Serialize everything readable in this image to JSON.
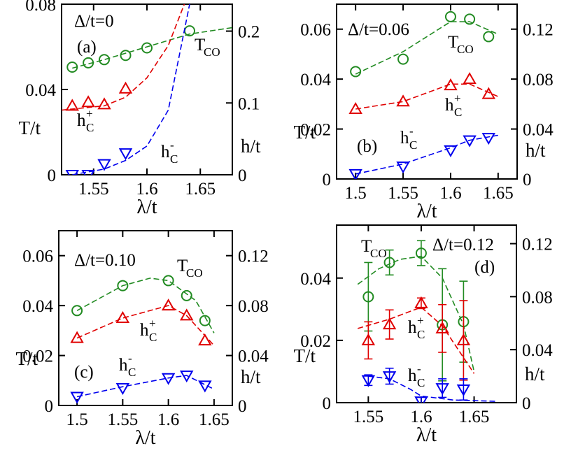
{
  "colors": {
    "t_co": "#228B22",
    "h_plus": "#E00000",
    "h_minus": "#0000EE",
    "axis": "#000000"
  },
  "chart_data": [
    {
      "type": "scatter",
      "panel_label": "(a)",
      "annotation": "Δ/t=0",
      "xlabel": "λ/t",
      "ylabel_left": "T/t",
      "ylabel_right": "h/t",
      "xlim": [
        1.52,
        1.68
      ],
      "ylim_left": [
        0,
        0.08
      ],
      "ylim_right": [
        0,
        0.2375
      ],
      "xticks": [
        1.55,
        1.6,
        1.65
      ],
      "xtick_labels": [
        "1.55",
        "1.6",
        "1.65"
      ],
      "yticks_left": [
        0,
        0.04,
        0.08
      ],
      "ytick_labels_left": [
        "0",
        "0.04",
        "0.08"
      ],
      "yticks_right": [
        0,
        0.1,
        0.2
      ],
      "ytick_labels_right": [
        "0",
        "0.1",
        "0.2"
      ],
      "series_labels": [
        {
          "series": "T_CO",
          "main": "T",
          "sub": "CO",
          "sup": ""
        },
        {
          "series": "h_C+",
          "main": "h",
          "sub": "C",
          "sup": "+"
        },
        {
          "series": "h_C-",
          "main": "h",
          "sub": "C",
          "sup": "-"
        }
      ],
      "series": [
        {
          "name": "T_CO",
          "axis": "left",
          "marker": "circle",
          "x": [
            1.53,
            1.545,
            1.56,
            1.58,
            1.6,
            1.64
          ],
          "y": [
            0.0505,
            0.0525,
            0.054,
            0.056,
            0.0595,
            0.0675
          ],
          "fit": {
            "x": [
              1.53,
              1.56,
              1.6,
              1.64,
              1.68
            ],
            "y": [
              0.05,
              0.054,
              0.06,
              0.066,
              0.069
            ]
          }
        },
        {
          "name": "h_C+",
          "axis": "right",
          "marker": "triangle-up",
          "x": [
            1.53,
            1.545,
            1.56,
            1.58,
            1.6
          ],
          "y": [
            0.096,
            0.101,
            0.098,
            0.12,
            null
          ],
          "fit": {
            "x": [
              1.52,
              1.56,
              1.58,
              1.6,
              1.62,
              1.635
            ],
            "y": [
              0.09,
              0.096,
              0.108,
              0.135,
              0.18,
              0.2375
            ]
          }
        },
        {
          "name": "h_C-",
          "axis": "right",
          "marker": "triangle-down",
          "x": [
            1.53,
            1.545,
            1.56,
            1.58,
            1.6
          ],
          "y": [
            0,
            0,
            0.015,
            0.03,
            null
          ],
          "fit": {
            "x": [
              1.53,
              1.56,
              1.58,
              1.6,
              1.62,
              1.64
            ],
            "y": [
              0,
              0.008,
              0.02,
              0.04,
              0.09,
              0.2375
            ]
          }
        }
      ]
    },
    {
      "type": "scatter",
      "panel_label": "(b)",
      "annotation": "Δ/t=0.06",
      "xlabel": "λ/t",
      "ylabel_left": "T/t",
      "ylabel_right": "h/t",
      "xlim": [
        1.48,
        1.67
      ],
      "ylim_left": [
        0,
        0.07
      ],
      "ylim_right": [
        0,
        0.14
      ],
      "xticks": [
        1.5,
        1.55,
        1.6,
        1.65
      ],
      "xtick_labels": [
        "1.5",
        "1.55",
        "1.6",
        "1.65"
      ],
      "yticks_left": [
        0,
        0.02,
        0.04,
        0.06
      ],
      "ytick_labels_left": [
        "0",
        "0.02",
        "0.04",
        "0.06"
      ],
      "yticks_right": [
        0,
        0.04,
        0.08,
        0.12
      ],
      "ytick_labels_right": [
        "0",
        "0.04",
        "0.08",
        "0.12"
      ],
      "series_labels": [
        {
          "series": "T_CO",
          "main": "T",
          "sub": "CO",
          "sup": ""
        },
        {
          "series": "h_C+",
          "main": "h",
          "sub": "C",
          "sup": "+"
        },
        {
          "series": "h_C-",
          "main": "h",
          "sub": "C",
          "sup": "-"
        }
      ],
      "series": [
        {
          "name": "T_CO",
          "axis": "left",
          "marker": "circle",
          "x": [
            1.5,
            1.55,
            1.6,
            1.62,
            1.64
          ],
          "y": [
            0.043,
            0.048,
            0.065,
            0.064,
            0.057
          ],
          "fit": {
            "x": [
              1.5,
              1.55,
              1.6,
              1.62,
              1.65
            ],
            "y": [
              0.042,
              0.051,
              0.063,
              0.063,
              0.058
            ]
          }
        },
        {
          "name": "h_C+",
          "axis": "right",
          "marker": "triangle-up",
          "x": [
            1.5,
            1.55,
            1.6,
            1.62,
            1.64
          ],
          "y": [
            0.056,
            0.062,
            0.075,
            0.08,
            0.068
          ],
          "fit": {
            "x": [
              1.5,
              1.55,
              1.6,
              1.62,
              1.65
            ],
            "y": [
              0.056,
              0.062,
              0.076,
              0.076,
              0.066
            ]
          }
        },
        {
          "name": "h_C-",
          "axis": "right",
          "marker": "triangle-down",
          "x": [
            1.5,
            1.55,
            1.6,
            1.62,
            1.64
          ],
          "y": [
            0.004,
            0.01,
            0.023,
            0.031,
            0.033
          ],
          "fit": {
            "x": [
              1.5,
              1.55,
              1.6,
              1.62,
              1.65
            ],
            "y": [
              0.004,
              0.012,
              0.025,
              0.031,
              0.035
            ]
          }
        }
      ]
    },
    {
      "type": "scatter",
      "panel_label": "(c)",
      "annotation": "Δ/t=0.10",
      "xlabel": "λ/t",
      "ylabel_left": "T/t",
      "ylabel_right": "h/t",
      "xlim": [
        1.48,
        1.67
      ],
      "ylim_left": [
        0,
        0.07
      ],
      "ylim_right": [
        0,
        0.14
      ],
      "xticks": [
        1.5,
        1.55,
        1.6,
        1.65
      ],
      "xtick_labels": [
        "1.5",
        "1.55",
        "1.6",
        "1.65"
      ],
      "yticks_left": [
        0,
        0.02,
        0.04,
        0.06
      ],
      "ytick_labels_left": [
        "0",
        "0.02",
        "0.04",
        "0.06"
      ],
      "yticks_right": [
        0,
        0.04,
        0.08,
        0.12
      ],
      "ytick_labels_right": [
        "0",
        "0.04",
        "0.08",
        "0.12"
      ],
      "series_labels": [
        {
          "series": "T_CO",
          "main": "T",
          "sub": "CO",
          "sup": ""
        },
        {
          "series": "h_C+",
          "main": "h",
          "sub": "C",
          "sup": "+"
        },
        {
          "series": "h_C-",
          "main": "h",
          "sub": "C",
          "sup": "-"
        }
      ],
      "series": [
        {
          "name": "T_CO",
          "axis": "left",
          "marker": "circle",
          "x": [
            1.5,
            1.55,
            1.6,
            1.62,
            1.64
          ],
          "y": [
            0.038,
            0.048,
            0.05,
            0.044,
            0.034
          ],
          "fit": {
            "x": [
              1.5,
              1.55,
              1.58,
              1.6,
              1.63,
              1.65
            ],
            "y": [
              0.038,
              0.048,
              0.051,
              0.05,
              0.042,
              0.029
            ]
          }
        },
        {
          "name": "h_C+",
          "axis": "right",
          "marker": "triangle-up",
          "x": [
            1.5,
            1.55,
            1.6,
            1.62,
            1.64
          ],
          "y": [
            0.054,
            0.07,
            0.08,
            0.072,
            0.052
          ],
          "fit": {
            "x": [
              1.5,
              1.55,
              1.6,
              1.62,
              1.65
            ],
            "y": [
              0.054,
              0.07,
              0.08,
              0.072,
              0.048
            ]
          }
        },
        {
          "name": "h_C-",
          "axis": "right",
          "marker": "triangle-down",
          "x": [
            1.5,
            1.55,
            1.6,
            1.62,
            1.64
          ],
          "y": [
            0.007,
            0.014,
            0.022,
            0.024,
            0.016
          ],
          "fit": {
            "x": [
              1.5,
              1.55,
              1.6,
              1.62,
              1.65
            ],
            "y": [
              0.007,
              0.015,
              0.022,
              0.024,
              0.013
            ]
          }
        }
      ]
    },
    {
      "type": "scatter",
      "panel_label": "(d)",
      "annotation": "Δ/t=0.12",
      "xlabel": "λ/t",
      "ylabel_left": "T/t",
      "ylabel_right": "h/t",
      "xlim": [
        1.52,
        1.69
      ],
      "ylim_left": [
        0,
        0.057
      ],
      "ylim_right": [
        0,
        0.134
      ],
      "xticks": [
        1.55,
        1.6,
        1.65
      ],
      "xtick_labels": [
        "1.55",
        "1.6",
        "1.65"
      ],
      "yticks_left": [
        0,
        0.02,
        0.04
      ],
      "ytick_labels_left": [
        "0",
        "0.02",
        "0.04"
      ],
      "yticks_right": [
        0,
        0.04,
        0.08,
        0.12
      ],
      "ytick_labels_right": [
        "0",
        "0.04",
        "0.08",
        "0.12"
      ],
      "series_labels": [
        {
          "series": "T_CO",
          "main": "T",
          "sub": "CO",
          "sup": ""
        },
        {
          "series": "h_C+",
          "main": "h",
          "sub": "C",
          "sup": "+"
        },
        {
          "series": "h_C-",
          "main": "h",
          "sub": "C",
          "sup": "-"
        }
      ],
      "series": [
        {
          "name": "T_CO",
          "axis": "left",
          "marker": "circle",
          "x": [
            1.55,
            1.57,
            1.6,
            1.62,
            1.64
          ],
          "y": [
            0.034,
            0.045,
            0.048,
            0.025,
            0.026
          ],
          "err": [
            0.011,
            0.004,
            0.004,
            0.018,
            0.013
          ],
          "fit": {
            "x": [
              1.54,
              1.56,
              1.58,
              1.6,
              1.62,
              1.64,
              1.65
            ],
            "y": [
              0.038,
              0.043,
              0.046,
              0.047,
              0.04,
              0.025,
              0.01
            ]
          }
        },
        {
          "name": "h_C+",
          "axis": "right",
          "marker": "triangle-up",
          "x": [
            1.55,
            1.57,
            1.6,
            1.62,
            1.64
          ],
          "y": [
            0.047,
            0.059,
            0.075,
            0.056,
            0.047
          ],
          "err": [
            0.014,
            0.011,
            0.004,
            0.018,
            0.03
          ],
          "fit": {
            "x": [
              1.54,
              1.57,
              1.6,
              1.62,
              1.65
            ],
            "y": [
              0.056,
              0.063,
              0.072,
              0.058,
              0.022
            ]
          }
        },
        {
          "name": "h_C-",
          "axis": "right",
          "marker": "triangle-down",
          "x": [
            1.55,
            1.57,
            1.6,
            1.62,
            1.64
          ],
          "y": [
            0.017,
            0.02,
            0.001,
            0.011,
            0.01
          ],
          "err": [
            0.004,
            0.006,
            0.003,
            0.007,
            0.008
          ],
          "fit": {
            "x": [
              1.55,
              1.57,
              1.59,
              1.6,
              1.63,
              1.67
            ],
            "y": [
              0.02,
              0.018,
              0.01,
              0.005,
              0.002,
              0.001
            ]
          }
        }
      ]
    }
  ]
}
